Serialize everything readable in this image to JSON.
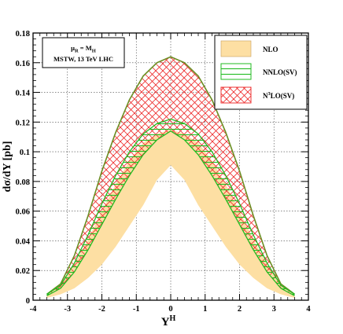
{
  "chart_data": {
    "type": "area",
    "xlabel": "Y",
    "xlabel_sup": "H",
    "ylabel": "dσ/dY [pb]",
    "xlim": [
      -4,
      4
    ],
    "ylim": [
      0,
      0.18
    ],
    "xticks": [
      -4,
      -3,
      -2,
      -1,
      0,
      1,
      2,
      3,
      4
    ],
    "yticks": [
      0,
      0.02,
      0.04,
      0.06,
      0.08,
      0.1,
      0.12,
      0.14,
      0.16,
      0.18
    ],
    "ytick_labels": [
      "0",
      "0.02",
      "0.04",
      "0.06",
      "0.08",
      "0.1",
      "0.12",
      "0.14",
      "0.16",
      "0.18"
    ],
    "grid": true,
    "legend_position": "top-right",
    "info_box": {
      "line1_main": "μ",
      "line1_sub": "R",
      "line1_mid": " = M",
      "line1_sub2": "H",
      "line2": "MSTW, 13 TeV LHC"
    },
    "x": [
      -3.6,
      -3.2,
      -2.8,
      -2.4,
      -2.0,
      -1.6,
      -1.2,
      -0.8,
      -0.4,
      0.0,
      0.4,
      0.8,
      1.2,
      1.6,
      2.0,
      2.4,
      2.8,
      3.2,
      3.6
    ],
    "series": [
      {
        "name": "NLO",
        "legend_label": "NLO",
        "style": "fill",
        "color": "#fddfa3",
        "lower": [
          0.0015,
          0.004,
          0.008,
          0.015,
          0.024,
          0.036,
          0.05,
          0.064,
          0.081,
          0.091,
          0.081,
          0.064,
          0.05,
          0.036,
          0.024,
          0.015,
          0.008,
          0.004,
          0.0015
        ],
        "upper": [
          0.004,
          0.01,
          0.024,
          0.041,
          0.06,
          0.078,
          0.094,
          0.106,
          0.112,
          0.115,
          0.112,
          0.106,
          0.094,
          0.078,
          0.06,
          0.041,
          0.024,
          0.01,
          0.004
        ]
      },
      {
        "name": "NNLO(SV)",
        "legend_label": "NNLO(SV)",
        "style": "hatch-horizontal",
        "color": "#22bb22",
        "lower": [
          0.003,
          0.008,
          0.019,
          0.034,
          0.051,
          0.068,
          0.084,
          0.098,
          0.108,
          0.114,
          0.108,
          0.098,
          0.084,
          0.068,
          0.051,
          0.034,
          0.019,
          0.008,
          0.003
        ],
        "upper": [
          0.004,
          0.01,
          0.025,
          0.044,
          0.065,
          0.084,
          0.1,
          0.112,
          0.119,
          0.122,
          0.119,
          0.112,
          0.1,
          0.084,
          0.065,
          0.044,
          0.025,
          0.01,
          0.004
        ]
      },
      {
        "name": "N³LO(SV)",
        "legend_label_main": "N",
        "legend_label_sup": "3",
        "legend_label_rest": "LO(SV)",
        "style": "hatch-cross",
        "color": "#ee3333",
        "outline": "#6b8e23",
        "lower": [
          0.003,
          0.008,
          0.019,
          0.034,
          0.051,
          0.068,
          0.084,
          0.098,
          0.108,
          0.114,
          0.108,
          0.098,
          0.084,
          0.068,
          0.051,
          0.034,
          0.019,
          0.008,
          0.003
        ],
        "upper": [
          0.004,
          0.011,
          0.03,
          0.057,
          0.087,
          0.113,
          0.135,
          0.151,
          0.16,
          0.164,
          0.16,
          0.151,
          0.135,
          0.113,
          0.087,
          0.057,
          0.03,
          0.011,
          0.004
        ]
      }
    ]
  }
}
